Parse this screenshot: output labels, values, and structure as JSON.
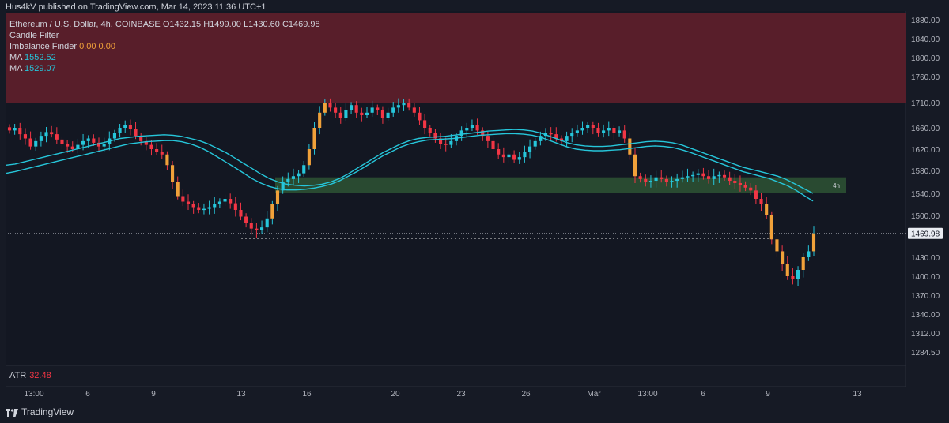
{
  "header": {
    "published": "Hus4kV published on TradingView.com, Mar 14, 2023 11:36 UTC+1"
  },
  "legend": {
    "symbol": "Ethereum / U.S. Dollar, 4h, COINBASE",
    "o_label": "O",
    "o": "1432.15",
    "h_label": "H",
    "h": "1499.00",
    "l_label": "L",
    "l": "1430.60",
    "c_label": "C",
    "c": "1469.98",
    "candle_filter": "Candle Filter",
    "imbalance_label": "Imbalance Finder",
    "imbalance_v1": "0.00",
    "imbalance_v2": "0.00",
    "ma1_label": "MA",
    "ma1_value": "1552.52",
    "ma2_label": "MA",
    "ma2_value": "1529.07"
  },
  "atr": {
    "label": "ATR",
    "value": "32.48"
  },
  "footer": {
    "brand": "TradingView"
  },
  "colors": {
    "bg": "#161a25",
    "up": "#26c6da",
    "down": "#f23645",
    "imbalance": "#f0a13a",
    "ma": "#26c6da",
    "supply": "#5c1f2b",
    "demand": "#2a4d33"
  },
  "chart_data": {
    "type": "candlestick",
    "timeframe": "4h",
    "price_labels": [
      "1880.00",
      "1840.00",
      "1800.00",
      "1760.00",
      "1710.00",
      "1660.00",
      "1620.00",
      "1580.00",
      "1540.00",
      "1500.00",
      "1430.00",
      "1400.00",
      "1370.00",
      "1340.00",
      "1312.00",
      "1284.50"
    ],
    "price_ticks": [
      1880,
      1840,
      1800,
      1760,
      1710,
      1660,
      1620,
      1580,
      1540,
      1500,
      1430,
      1400,
      1370,
      1340,
      1312,
      1284.5
    ],
    "current_price_label": "1469.98",
    "x_labels": [
      "13:00",
      "6",
      "9",
      "13",
      "16",
      "20",
      "23",
      "26",
      "Mar",
      "13:00",
      "6",
      "9",
      "13"
    ],
    "supply_zone": [
      1710,
      1895
    ],
    "demand_zone": [
      1540,
      1568
    ],
    "demand_zone_label": "4h",
    "support_line": 1462,
    "close_path": [
      1655,
      1660,
      1648,
      1640,
      1625,
      1635,
      1645,
      1652,
      1648,
      1638,
      1630,
      1625,
      1620,
      1628,
      1635,
      1640,
      1632,
      1625,
      1630,
      1640,
      1650,
      1660,
      1665,
      1658,
      1645,
      1635,
      1628,
      1620,
      1615,
      1610,
      1590,
      1560,
      1535,
      1525,
      1520,
      1515,
      1510,
      1512,
      1515,
      1520,
      1525,
      1530,
      1522,
      1510,
      1498,
      1488,
      1478,
      1475,
      1480,
      1495,
      1520,
      1545,
      1560,
      1565,
      1570,
      1575,
      1590,
      1620,
      1660,
      1690,
      1710,
      1700,
      1690,
      1680,
      1695,
      1705,
      1690,
      1685,
      1690,
      1700,
      1695,
      1680,
      1690,
      1700,
      1705,
      1710,
      1700,
      1690,
      1675,
      1660,
      1650,
      1640,
      1630,
      1628,
      1635,
      1645,
      1655,
      1660,
      1665,
      1655,
      1645,
      1635,
      1620,
      1610,
      1605,
      1610,
      1600,
      1605,
      1615,
      1625,
      1635,
      1645,
      1650,
      1648,
      1640,
      1635,
      1645,
      1650,
      1655,
      1660,
      1665,
      1660,
      1650,
      1655,
      1660,
      1650,
      1655,
      1640,
      1610,
      1570,
      1565,
      1560,
      1562,
      1568,
      1565,
      1560,
      1562,
      1565,
      1568,
      1570,
      1572,
      1575,
      1570,
      1565,
      1570,
      1572,
      1568,
      1562,
      1558,
      1555,
      1550,
      1545,
      1530,
      1520,
      1500,
      1460,
      1440,
      1420,
      1400,
      1395,
      1410,
      1430,
      1440,
      1470
    ],
    "ma_fast": [
      1590,
      1592,
      1596,
      1600,
      1604,
      1608,
      1612,
      1616,
      1620,
      1624,
      1628,
      1632,
      1636,
      1640,
      1642,
      1644,
      1645,
      1646,
      1647,
      1646,
      1644,
      1640,
      1636,
      1630,
      1622,
      1614,
      1604,
      1594,
      1584,
      1574,
      1566,
      1560,
      1556,
      1554,
      1553,
      1554,
      1556,
      1560,
      1566,
      1574,
      1584,
      1594,
      1604,
      1614,
      1622,
      1630,
      1636,
      1640,
      1642,
      1643,
      1644,
      1646,
      1648,
      1650,
      1652,
      1654,
      1655,
      1656,
      1657,
      1656,
      1654,
      1650,
      1644,
      1638,
      1632,
      1628,
      1626,
      1625,
      1625,
      1626,
      1628,
      1630,
      1632,
      1634,
      1635,
      1634,
      1632,
      1628,
      1622,
      1616,
      1610,
      1604,
      1598,
      1592,
      1586,
      1582,
      1578,
      1574,
      1570,
      1564,
      1556,
      1548,
      1540
    ],
    "ma_slow": [
      1575,
      1578,
      1582,
      1586,
      1590,
      1594,
      1598,
      1602,
      1606,
      1610,
      1614,
      1618,
      1622,
      1626,
      1630,
      1632,
      1634,
      1635,
      1636,
      1636,
      1634,
      1630,
      1624,
      1616,
      1606,
      1596,
      1586,
      1576,
      1566,
      1558,
      1552,
      1548,
      1546,
      1546,
      1547,
      1549,
      1552,
      1556,
      1562,
      1570,
      1578,
      1588,
      1598,
      1608,
      1616,
      1624,
      1630,
      1634,
      1637,
      1638,
      1639,
      1640,
      1642,
      1644,
      1646,
      1647,
      1648,
      1649,
      1649,
      1648,
      1646,
      1642,
      1636,
      1630,
      1624,
      1620,
      1618,
      1617,
      1617,
      1618,
      1619,
      1621,
      1623,
      1625,
      1626,
      1625,
      1623,
      1619,
      1614,
      1608,
      1602,
      1596,
      1590,
      1584,
      1578,
      1574,
      1570,
      1566,
      1560,
      1554,
      1546,
      1536,
      1526
    ]
  }
}
